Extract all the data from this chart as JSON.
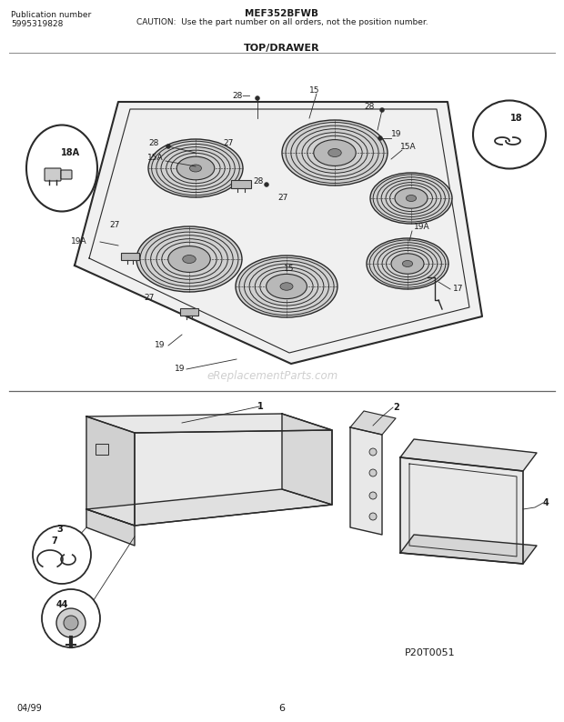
{
  "title_center": "MEF352BFWB",
  "caution_text": "CAUTION:  Use the part number on all orders, not the position number.",
  "pub_label": "Publication number",
  "pub_number": "5995319828",
  "section_title": "TOP/DRAWER",
  "date_text": "04/99",
  "page_number": "6",
  "part_code": "P20T0051",
  "bg_color": "#ffffff",
  "text_color": "#1a1a1a",
  "lc": "#2a2a2a",
  "watermark_text": "eReplacementParts.com",
  "watermark_color": "#bbbbbb",
  "fig_width": 6.2,
  "fig_height": 7.94,
  "dpi": 100
}
